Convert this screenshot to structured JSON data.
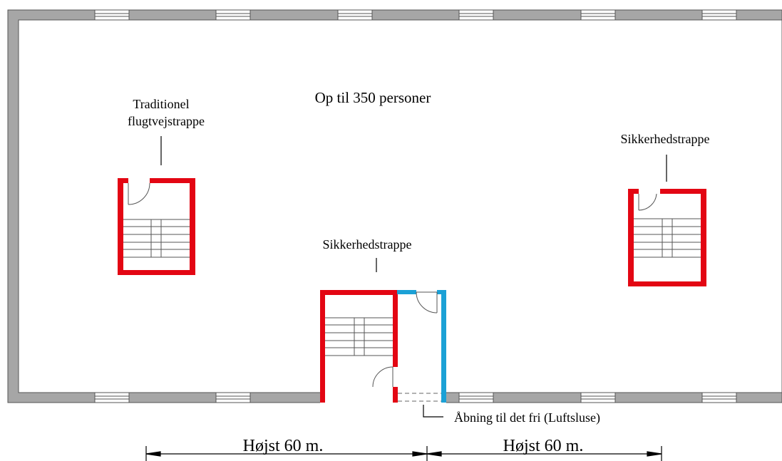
{
  "labels": {
    "occupancy": "Op til 350 personer",
    "left_stair_line1": "Traditionel",
    "left_stair_line2": "flugtvejstrappe",
    "right_stair": "Sikkerhedstrappe",
    "center_stair": "Sikkerhedstrappe",
    "airlock_note": "Åbning til det fri (Luftsluse)",
    "distance_left": "Højst 60 m.",
    "distance_right": "Højst 60 m."
  },
  "colors": {
    "wall_grey": "#a6a6a6",
    "stair_wall_red": "#e30613",
    "airlock_wall_blue": "#1ba1d6",
    "line": "#000000"
  }
}
